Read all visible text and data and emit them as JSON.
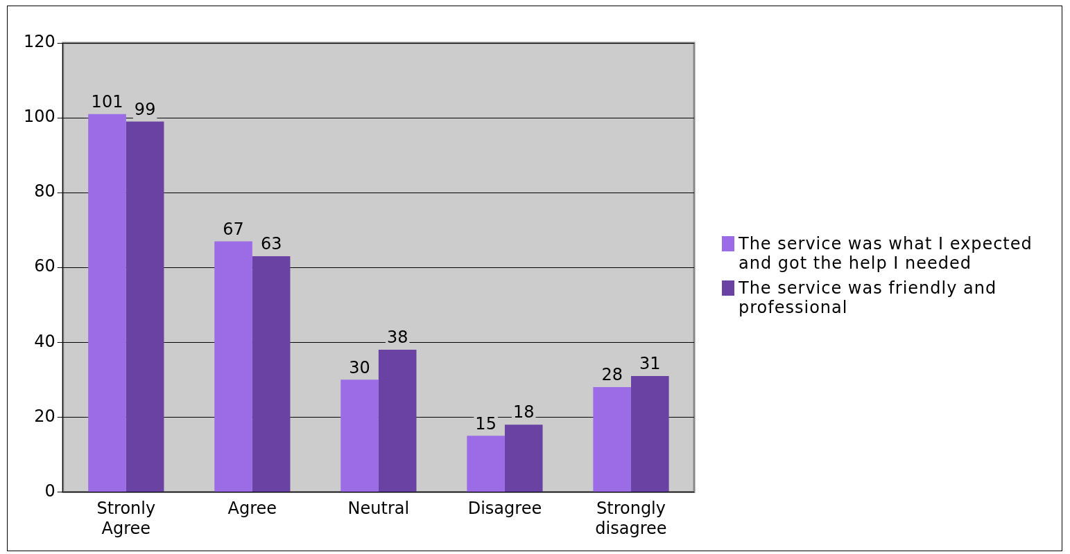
{
  "chart_data": {
    "type": "bar",
    "categories": [
      "Stronly Agree",
      "Agree",
      "Neutral",
      "Disagree",
      "Strongly disagree"
    ],
    "series": [
      {
        "name": "The service was what I expected and got the help I needed",
        "color": "#9b6ce6",
        "values": [
          101,
          67,
          30,
          15,
          28
        ]
      },
      {
        "name": "The service was friendly and professional",
        "color": "#6a42a3",
        "values": [
          99,
          63,
          38,
          18,
          31
        ]
      }
    ],
    "ylim": [
      0,
      120
    ],
    "yticks": [
      0,
      20,
      40,
      60,
      80,
      100,
      120
    ],
    "grid": "y",
    "legend": "right",
    "data_labels": true
  }
}
